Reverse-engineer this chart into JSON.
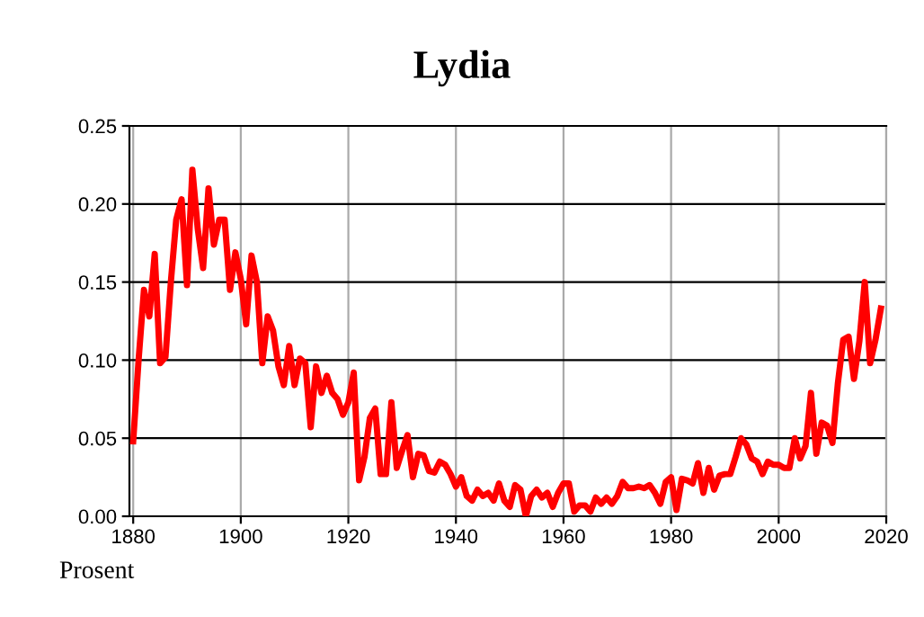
{
  "chart_data": {
    "type": "line",
    "title": "Lydia",
    "ylabel": "Prosent",
    "x": [
      1880,
      1881,
      1882,
      1883,
      1884,
      1885,
      1886,
      1887,
      1888,
      1889,
      1890,
      1891,
      1892,
      1893,
      1894,
      1895,
      1896,
      1897,
      1898,
      1899,
      1900,
      1901,
      1902,
      1903,
      1904,
      1905,
      1906,
      1907,
      1908,
      1909,
      1910,
      1911,
      1912,
      1913,
      1914,
      1915,
      1916,
      1917,
      1918,
      1919,
      1920,
      1921,
      1922,
      1923,
      1924,
      1925,
      1926,
      1927,
      1928,
      1929,
      1930,
      1931,
      1932,
      1933,
      1934,
      1935,
      1936,
      1937,
      1938,
      1939,
      1940,
      1941,
      1942,
      1943,
      1944,
      1945,
      1946,
      1947,
      1948,
      1949,
      1950,
      1951,
      1952,
      1953,
      1954,
      1955,
      1956,
      1957,
      1958,
      1959,
      1960,
      1961,
      1962,
      1963,
      1964,
      1965,
      1966,
      1967,
      1968,
      1969,
      1970,
      1971,
      1972,
      1973,
      1974,
      1975,
      1976,
      1977,
      1978,
      1979,
      1980,
      1981,
      1982,
      1983,
      1984,
      1985,
      1986,
      1987,
      1988,
      1989,
      1990,
      1991,
      1992,
      1993,
      1994,
      1995,
      1996,
      1997,
      1998,
      1999,
      2000,
      2001,
      2002,
      2003,
      2004,
      2005,
      2006,
      2007,
      2008,
      2009,
      2010,
      2011,
      2012,
      2013,
      2014,
      2015,
      2016,
      2017,
      2018,
      2019
    ],
    "series": [
      {
        "color": "#ff0000",
        "values": [
          0.048,
          0.1,
          0.145,
          0.128,
          0.168,
          0.098,
          0.102,
          0.15,
          0.19,
          0.203,
          0.148,
          0.222,
          0.184,
          0.159,
          0.21,
          0.174,
          0.19,
          0.19,
          0.145,
          0.169,
          0.152,
          0.123,
          0.167,
          0.15,
          0.098,
          0.128,
          0.119,
          0.096,
          0.084,
          0.109,
          0.084,
          0.101,
          0.098,
          0.057,
          0.096,
          0.079,
          0.09,
          0.079,
          0.075,
          0.065,
          0.073,
          0.092,
          0.023,
          0.038,
          0.063,
          0.069,
          0.027,
          0.027,
          0.073,
          0.031,
          0.042,
          0.052,
          0.025,
          0.04,
          0.039,
          0.029,
          0.028,
          0.035,
          0.033,
          0.027,
          0.019,
          0.025,
          0.013,
          0.01,
          0.017,
          0.013,
          0.015,
          0.01,
          0.021,
          0.01,
          0.006,
          0.02,
          0.017,
          0.0,
          0.013,
          0.017,
          0.012,
          0.015,
          0.006,
          0.015,
          0.021,
          0.021,
          0.003,
          0.007,
          0.007,
          0.003,
          0.012,
          0.008,
          0.012,
          0.008,
          0.013,
          0.022,
          0.018,
          0.018,
          0.019,
          0.018,
          0.02,
          0.015,
          0.008,
          0.022,
          0.025,
          0.004,
          0.024,
          0.023,
          0.021,
          0.034,
          0.015,
          0.031,
          0.017,
          0.026,
          0.027,
          0.027,
          0.038,
          0.05,
          0.046,
          0.037,
          0.035,
          0.027,
          0.035,
          0.033,
          0.033,
          0.031,
          0.031,
          0.05,
          0.037,
          0.045,
          0.079,
          0.04,
          0.06,
          0.058,
          0.047,
          0.085,
          0.113,
          0.115,
          0.088,
          0.112,
          0.15,
          0.098,
          0.113,
          0.133
        ]
      }
    ],
    "xlim": [
      1879.3,
      2020
    ],
    "xticks": [
      1880,
      1900,
      1920,
      1940,
      1960,
      1980,
      2000,
      2020
    ],
    "ylim": [
      0,
      0.25
    ],
    "yticks": [
      {
        "value": 0,
        "label": "0.00"
      },
      {
        "value": 0.05,
        "label": "0.05"
      },
      {
        "value": 0.1,
        "label": "0.10"
      },
      {
        "value": 0.15,
        "label": "0.15"
      },
      {
        "value": 0.2,
        "label": "0.20"
      },
      {
        "value": 0.25,
        "label": "0.25"
      }
    ],
    "grid": true,
    "legend": false,
    "marker": "none",
    "line_style": "solid"
  }
}
